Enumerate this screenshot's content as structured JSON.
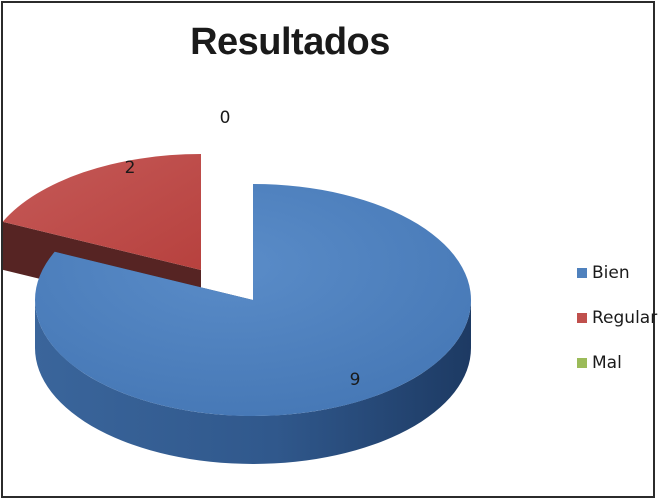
{
  "chart_data": {
    "type": "pie",
    "title": "Resultados",
    "categories": [
      "Bien",
      "Regular",
      "Mal"
    ],
    "values": [
      9,
      2,
      0
    ],
    "data_labels": [
      "9",
      "2",
      "0"
    ],
    "colors": [
      "#4f81bd",
      "#c0504d",
      "#9bbb59"
    ],
    "style": "3d-exploded",
    "legend_position": "right"
  }
}
